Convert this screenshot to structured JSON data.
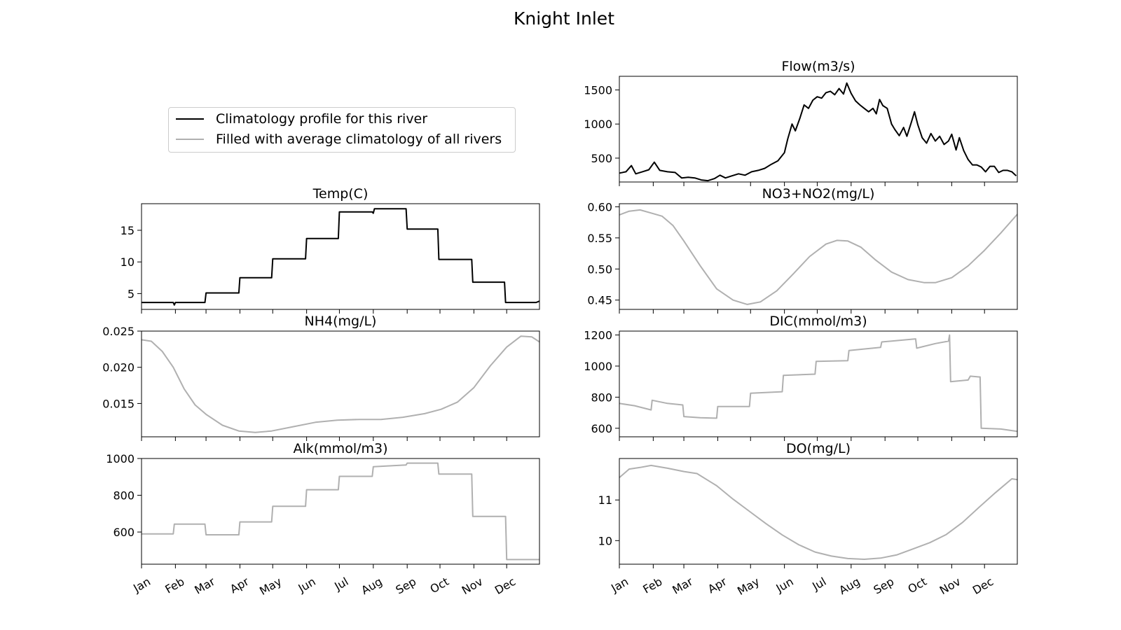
{
  "title": "Knight Inlet",
  "legend": {
    "entries": [
      {
        "label": "Climatology profile for this river",
        "color": "#000000"
      },
      {
        "label": "Filled with average climatology of all rivers",
        "color": "#b0b0b0"
      }
    ],
    "placement": "upper-left panel"
  },
  "month_labels": [
    "Jan",
    "Feb",
    "Mar",
    "Apr",
    "May",
    "Jun",
    "Jul",
    "Aug",
    "Sep",
    "Oct",
    "Nov",
    "Dec"
  ],
  "chart_data": [
    {
      "type": "line",
      "title": "Flow(m3/s)",
      "series_name": "Climatology profile for this river",
      "color": "#000000",
      "ylim": [
        150,
        1700
      ],
      "yticks": [
        500,
        1000,
        1500
      ],
      "xlabels_shown": false,
      "points": [
        [
          1,
          280
        ],
        [
          7,
          300
        ],
        [
          12,
          390
        ],
        [
          16,
          270
        ],
        [
          22,
          300
        ],
        [
          28,
          330
        ],
        [
          33,
          440
        ],
        [
          38,
          320
        ],
        [
          45,
          300
        ],
        [
          52,
          290
        ],
        [
          58,
          210
        ],
        [
          64,
          220
        ],
        [
          70,
          210
        ],
        [
          76,
          180
        ],
        [
          82,
          170
        ],
        [
          88,
          200
        ],
        [
          93,
          250
        ],
        [
          98,
          210
        ],
        [
          104,
          240
        ],
        [
          110,
          270
        ],
        [
          116,
          250
        ],
        [
          122,
          300
        ],
        [
          128,
          320
        ],
        [
          134,
          350
        ],
        [
          140,
          410
        ],
        [
          146,
          460
        ],
        [
          152,
          580
        ],
        [
          155,
          780
        ],
        [
          159,
          1000
        ],
        [
          162,
          900
        ],
        [
          166,
          1080
        ],
        [
          170,
          1280
        ],
        [
          174,
          1230
        ],
        [
          178,
          1350
        ],
        [
          182,
          1400
        ],
        [
          186,
          1380
        ],
        [
          190,
          1460
        ],
        [
          194,
          1480
        ],
        [
          198,
          1430
        ],
        [
          202,
          1520
        ],
        [
          206,
          1440
        ],
        [
          209,
          1600
        ],
        [
          213,
          1450
        ],
        [
          217,
          1340
        ],
        [
          221,
          1280
        ],
        [
          225,
          1230
        ],
        [
          229,
          1180
        ],
        [
          233,
          1230
        ],
        [
          236,
          1150
        ],
        [
          239,
          1360
        ],
        [
          242,
          1270
        ],
        [
          246,
          1230
        ],
        [
          250,
          1000
        ],
        [
          253,
          920
        ],
        [
          257,
          830
        ],
        [
          261,
          950
        ],
        [
          264,
          820
        ],
        [
          268,
          1020
        ],
        [
          271,
          1180
        ],
        [
          274,
          990
        ],
        [
          278,
          800
        ],
        [
          282,
          720
        ],
        [
          286,
          860
        ],
        [
          290,
          750
        ],
        [
          294,
          820
        ],
        [
          298,
          700
        ],
        [
          302,
          750
        ],
        [
          305,
          850
        ],
        [
          309,
          620
        ],
        [
          312,
          800
        ],
        [
          316,
          610
        ],
        [
          320,
          480
        ],
        [
          324,
          400
        ],
        [
          328,
          400
        ],
        [
          332,
          370
        ],
        [
          336,
          300
        ],
        [
          340,
          380
        ],
        [
          344,
          380
        ],
        [
          348,
          290
        ],
        [
          352,
          320
        ],
        [
          356,
          320
        ],
        [
          360,
          300
        ],
        [
          364,
          240
        ]
      ]
    },
    {
      "type": "line",
      "title": "Temp(C)",
      "series_name": "Climatology profile for this river",
      "color": "#000000",
      "ylim": [
        2.5,
        19.2
      ],
      "yticks": [
        5,
        10,
        15
      ],
      "xlabels_shown": false,
      "points": [
        [
          1,
          3.6
        ],
        [
          30,
          3.6
        ],
        [
          31,
          3.2
        ],
        [
          32,
          3.6
        ],
        [
          59,
          3.6
        ],
        [
          60,
          5.1
        ],
        [
          90,
          5.1
        ],
        [
          91,
          7.5
        ],
        [
          120,
          7.5
        ],
        [
          121,
          10.5
        ],
        [
          151,
          10.5
        ],
        [
          152,
          13.7
        ],
        [
          181,
          13.7
        ],
        [
          182,
          17.9
        ],
        [
          212,
          17.9
        ],
        [
          213,
          17.7
        ],
        [
          214,
          18.4
        ],
        [
          243,
          18.4
        ],
        [
          244,
          15.2
        ],
        [
          272,
          15.2
        ],
        [
          273,
          10.4
        ],
        [
          303,
          10.4
        ],
        [
          304,
          6.8
        ],
        [
          333,
          6.8
        ],
        [
          334,
          3.6
        ],
        [
          362,
          3.6
        ],
        [
          365,
          3.8
        ]
      ]
    },
    {
      "type": "line",
      "title": "NO3+NO2(mg/L)",
      "series_name": "Filled with average climatology of all rivers",
      "color": "#b0b0b0",
      "ylim": [
        0.435,
        0.605
      ],
      "yticks": [
        0.45,
        0.5,
        0.55,
        0.6
      ],
      "xlabels_shown": false,
      "points": [
        [
          1,
          0.587
        ],
        [
          10,
          0.593
        ],
        [
          20,
          0.595
        ],
        [
          30,
          0.59
        ],
        [
          40,
          0.585
        ],
        [
          50,
          0.57
        ],
        [
          60,
          0.545
        ],
        [
          75,
          0.505
        ],
        [
          90,
          0.468
        ],
        [
          105,
          0.45
        ],
        [
          118,
          0.443
        ],
        [
          130,
          0.447
        ],
        [
          145,
          0.465
        ],
        [
          160,
          0.492
        ],
        [
          175,
          0.52
        ],
        [
          190,
          0.54
        ],
        [
          200,
          0.546
        ],
        [
          210,
          0.545
        ],
        [
          222,
          0.535
        ],
        [
          235,
          0.515
        ],
        [
          250,
          0.495
        ],
        [
          265,
          0.483
        ],
        [
          280,
          0.478
        ],
        [
          290,
          0.478
        ],
        [
          305,
          0.486
        ],
        [
          320,
          0.505
        ],
        [
          335,
          0.53
        ],
        [
          350,
          0.558
        ],
        [
          365,
          0.588
        ]
      ]
    },
    {
      "type": "line",
      "title": "NH4(mg/L)",
      "series_name": "Filled with average climatology of all rivers",
      "color": "#b0b0b0",
      "ylim": [
        0.0104,
        0.025
      ],
      "yticks": [
        0.015,
        0.02,
        0.025
      ],
      "xlabels_shown": false,
      "points": [
        [
          1,
          0.0238
        ],
        [
          10,
          0.0236
        ],
        [
          20,
          0.0222
        ],
        [
          30,
          0.02
        ],
        [
          40,
          0.017
        ],
        [
          50,
          0.0148
        ],
        [
          60,
          0.0135
        ],
        [
          75,
          0.012
        ],
        [
          90,
          0.0112
        ],
        [
          105,
          0.011
        ],
        [
          120,
          0.0112
        ],
        [
          140,
          0.0118
        ],
        [
          160,
          0.0124
        ],
        [
          180,
          0.0127
        ],
        [
          200,
          0.0128
        ],
        [
          220,
          0.0128
        ],
        [
          240,
          0.0131
        ],
        [
          260,
          0.0136
        ],
        [
          275,
          0.0142
        ],
        [
          290,
          0.0152
        ],
        [
          305,
          0.0172
        ],
        [
          320,
          0.0202
        ],
        [
          335,
          0.0228
        ],
        [
          348,
          0.0243
        ],
        [
          358,
          0.0242
        ],
        [
          365,
          0.0235
        ]
      ]
    },
    {
      "type": "line",
      "title": "DIC(mmol/m3)",
      "series_name": "Filled with average climatology of all rivers",
      "color": "#b0b0b0",
      "ylim": [
        545,
        1225
      ],
      "yticks": [
        600,
        800,
        1000,
        1200
      ],
      "xlabels_shown": false,
      "points": [
        [
          1,
          760
        ],
        [
          15,
          745
        ],
        [
          30,
          718
        ],
        [
          31,
          780
        ],
        [
          45,
          760
        ],
        [
          59,
          750
        ],
        [
          60,
          675
        ],
        [
          75,
          668
        ],
        [
          90,
          665
        ],
        [
          91,
          740
        ],
        [
          120,
          740
        ],
        [
          121,
          825
        ],
        [
          150,
          835
        ],
        [
          151,
          940
        ],
        [
          180,
          948
        ],
        [
          181,
          1030
        ],
        [
          210,
          1035
        ],
        [
          211,
          1100
        ],
        [
          240,
          1120
        ],
        [
          241,
          1155
        ],
        [
          272,
          1175
        ],
        [
          273,
          1115
        ],
        [
          290,
          1145
        ],
        [
          302,
          1160
        ],
        [
          303,
          1200
        ],
        [
          304,
          900
        ],
        [
          320,
          910
        ],
        [
          322,
          935
        ],
        [
          330,
          930
        ],
        [
          331,
          930
        ],
        [
          332,
          600
        ],
        [
          350,
          595
        ],
        [
          365,
          580
        ]
      ]
    },
    {
      "type": "line",
      "title": "Alk(mmol/m3)",
      "series_name": "Filled with average climatology of all rivers",
      "color": "#b0b0b0",
      "ylim": [
        425,
        1000
      ],
      "yticks": [
        600,
        800,
        1000
      ],
      "xlabels_shown": true,
      "points": [
        [
          1,
          590
        ],
        [
          30,
          590
        ],
        [
          31,
          643
        ],
        [
          59,
          643
        ],
        [
          60,
          585
        ],
        [
          90,
          585
        ],
        [
          91,
          655
        ],
        [
          120,
          655
        ],
        [
          121,
          740
        ],
        [
          151,
          740
        ],
        [
          152,
          830
        ],
        [
          181,
          830
        ],
        [
          182,
          903
        ],
        [
          212,
          903
        ],
        [
          213,
          955
        ],
        [
          243,
          965
        ],
        [
          244,
          975
        ],
        [
          272,
          975
        ],
        [
          273,
          915
        ],
        [
          303,
          915
        ],
        [
          304,
          685
        ],
        [
          334,
          685
        ],
        [
          335,
          450
        ],
        [
          365,
          450
        ]
      ]
    },
    {
      "type": "line",
      "title": "DO(mg/L)",
      "series_name": "Filled with average climatology of all rivers",
      "color": "#b0b0b0",
      "ylim": [
        9.42,
        12.02
      ],
      "yticks": [
        10,
        11
      ],
      "xlabels_shown": true,
      "points": [
        [
          1,
          11.55
        ],
        [
          10,
          11.76
        ],
        [
          20,
          11.8
        ],
        [
          30,
          11.85
        ],
        [
          45,
          11.78
        ],
        [
          60,
          11.7
        ],
        [
          72,
          11.65
        ],
        [
          90,
          11.35
        ],
        [
          105,
          11.02
        ],
        [
          120,
          10.72
        ],
        [
          135,
          10.42
        ],
        [
          150,
          10.14
        ],
        [
          165,
          9.9
        ],
        [
          180,
          9.72
        ],
        [
          195,
          9.62
        ],
        [
          210,
          9.56
        ],
        [
          225,
          9.54
        ],
        [
          240,
          9.57
        ],
        [
          255,
          9.65
        ],
        [
          270,
          9.8
        ],
        [
          285,
          9.95
        ],
        [
          300,
          10.15
        ],
        [
          315,
          10.45
        ],
        [
          330,
          10.82
        ],
        [
          345,
          11.18
        ],
        [
          360,
          11.52
        ],
        [
          365,
          11.5
        ]
      ]
    }
  ]
}
